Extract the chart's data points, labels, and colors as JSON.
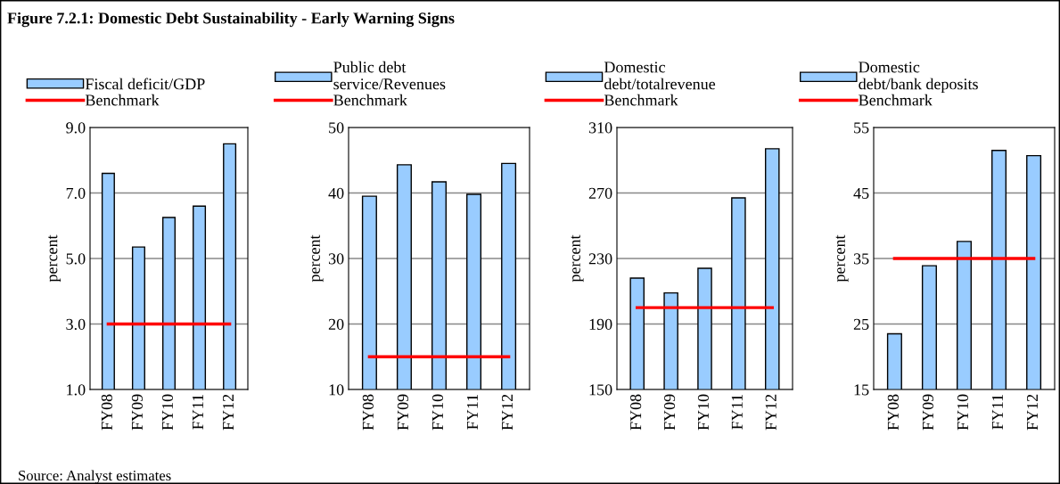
{
  "chart_data": [
    {
      "type": "bar",
      "title": "Figure 7.2.1: Domestic Debt Sustainability - Early Warning Signs",
      "annotations": [
        "Source: Analyst estimates"
      ],
      "ylabel": "percent",
      "categories": [
        "FY08",
        "FY09",
        "FY10",
        "FY11",
        "FY12"
      ],
      "series": [
        {
          "name": "Fiscal deficit/GDP",
          "color": "#99ccff",
          "values": [
            7.6,
            5.35,
            6.25,
            6.6,
            8.5
          ]
        },
        {
          "name": "Benchmark",
          "type": "line",
          "color": "#ff0000",
          "values": [
            3,
            3,
            3,
            3,
            3
          ]
        }
      ],
      "ylim": [
        1,
        9
      ],
      "yticks": [
        {
          "value": 1,
          "label": "1.0"
        },
        {
          "value": 3,
          "label": "3.0"
        },
        {
          "value": 5,
          "label": "5.0"
        },
        {
          "value": 7,
          "label": "7.0"
        },
        {
          "value": 9,
          "label": "9.0"
        }
      ],
      "grid": "y",
      "legend": "top"
    },
    {
      "type": "bar",
      "ylabel": "percent",
      "categories": [
        "FY08",
        "FY09",
        "FY10",
        "FY11",
        "FY12"
      ],
      "series": [
        {
          "name": "Public debt\nservice/Revenues",
          "color": "#99ccff",
          "values": [
            39.5,
            44.3,
            41.7,
            39.8,
            44.5
          ]
        },
        {
          "name": "Benchmark",
          "type": "line",
          "color": "#ff0000",
          "values": [
            15,
            15,
            15,
            15,
            15
          ]
        }
      ],
      "ylim": [
        10,
        50
      ],
      "yticks": [
        10,
        20,
        30,
        40,
        50
      ],
      "grid": "y",
      "legend": "top"
    },
    {
      "type": "bar",
      "ylabel": "percent",
      "categories": [
        "FY08",
        "FY09",
        "FY10",
        "FY11",
        "FY12"
      ],
      "series": [
        {
          "name": "Domestic\ndebt/totalrevenue",
          "color": "#99ccff",
          "values": [
            218,
            209,
            224,
            267,
            297
          ]
        },
        {
          "name": "Benchmark",
          "type": "line",
          "color": "#ff0000",
          "values": [
            200,
            200,
            200,
            200,
            200
          ]
        }
      ],
      "ylim": [
        150,
        310
      ],
      "yticks": [
        150,
        190,
        230,
        270,
        310
      ],
      "grid": "y",
      "legend": "top"
    },
    {
      "type": "bar",
      "ylabel": "percent",
      "categories": [
        "FY08",
        "FY09",
        "FY10",
        "FY11",
        "FY12"
      ],
      "series": [
        {
          "name": "Domestic\ndebt/bank deposits",
          "color": "#99ccff",
          "values": [
            23.5,
            33.9,
            37.6,
            51.5,
            50.7
          ]
        },
        {
          "name": "Benchmark",
          "type": "line",
          "color": "#ff0000",
          "values": [
            35,
            35,
            35,
            35,
            35
          ]
        }
      ],
      "ylim": [
        15,
        55
      ],
      "yticks": [
        15,
        25,
        35,
        45,
        55
      ],
      "grid": "y",
      "legend": "top"
    }
  ]
}
